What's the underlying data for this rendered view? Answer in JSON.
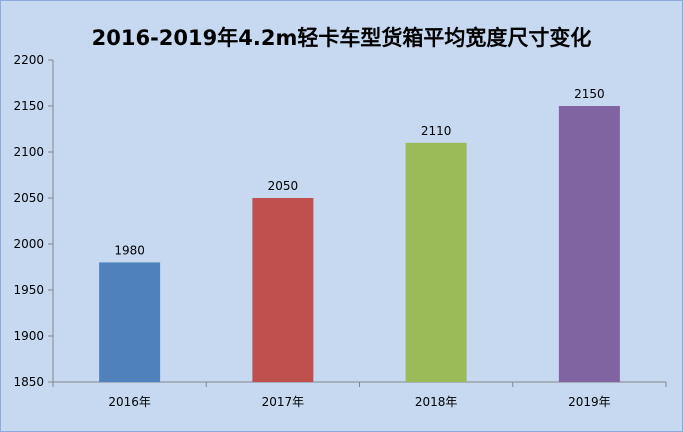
{
  "chart_data": {
    "type": "bar",
    "title": "2016-2019年4.2m轻卡车型货箱平均宽度尺寸变化",
    "categories": [
      "2016年",
      "2017年",
      "2018年",
      "2019年"
    ],
    "values": [
      1980,
      2050,
      2110,
      2150
    ],
    "bar_colors": [
      "#4f81bd",
      "#c0504d",
      "#9bbb59",
      "#8064a2"
    ],
    "ylim": [
      1850,
      2200
    ],
    "yticks": [
      1850,
      1900,
      1950,
      2000,
      2050,
      2100,
      2150,
      2200
    ],
    "xlabel": "",
    "ylabel": "",
    "grid": false,
    "legend": "none",
    "data_labels": true
  }
}
